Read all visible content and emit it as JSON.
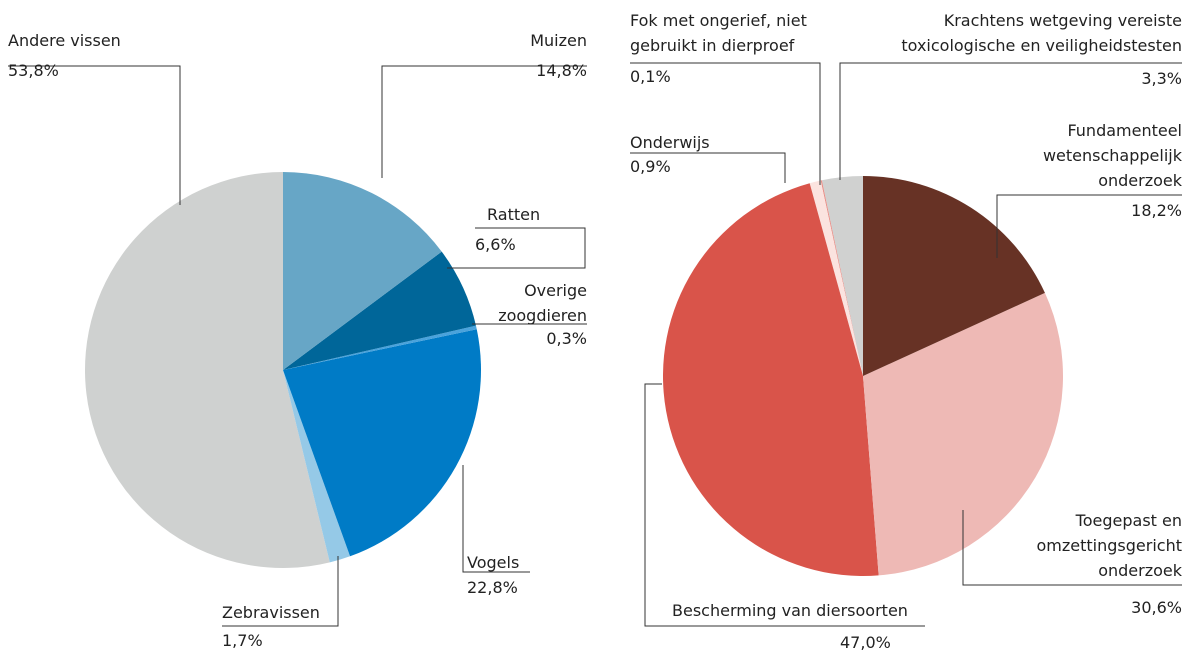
{
  "chart_data": [
    {
      "type": "pie",
      "categories": [
        "Muizen",
        "Ratten",
        "Overige zoogdieren",
        "Vogels",
        "Zebravissen",
        "Andere vissen"
      ],
      "values": [
        14.8,
        6.6,
        0.3,
        22.8,
        1.7,
        53.8
      ],
      "value_labels": [
        "14,8%",
        "6,6%",
        "0,3%",
        "22,8%",
        "1,7%",
        "53,8%"
      ],
      "colors": [
        "#67a6c6",
        "#006699",
        "#4aa3dc",
        "#007bc6",
        "#95c9e7",
        "#cfd1d0"
      ]
    },
    {
      "type": "pie",
      "categories": [
        "Fundamenteel wetenschappelijk onderzoek",
        "Toegepast en omzettingsgericht onderzoek",
        "Bescherming van diersoorten",
        "Onderwijs",
        "Fok met ongerief, niet gebruikt in dierproef",
        "Krachtens wetgeving vereiste toxicologische en veiligheidstesten"
      ],
      "values": [
        18.2,
        30.6,
        47.0,
        0.9,
        0.1,
        3.3
      ],
      "value_labels": [
        "18,2%",
        "30,6%",
        "47,0%",
        "0,9%",
        "0,1%",
        "3,3%"
      ],
      "colors": [
        "#673225",
        "#eeb9b5",
        "#d9544a",
        "#fbe3df",
        "#e8918a",
        "#d0d1d0"
      ]
    }
  ]
}
